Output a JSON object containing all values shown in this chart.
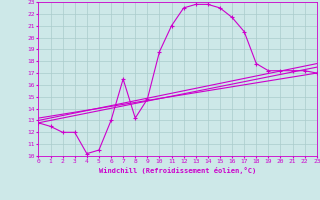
{
  "xlabel": "Windchill (Refroidissement éolien,°C)",
  "bg_color": "#cde8e8",
  "line_color": "#cc00cc",
  "grid_color": "#aacccc",
  "xlim": [
    0,
    23
  ],
  "ylim": [
    10,
    23
  ],
  "xticks": [
    0,
    1,
    2,
    3,
    4,
    5,
    6,
    7,
    8,
    9,
    10,
    11,
    12,
    13,
    14,
    15,
    16,
    17,
    18,
    19,
    20,
    21,
    22,
    23
  ],
  "yticks": [
    10,
    11,
    12,
    13,
    14,
    15,
    16,
    17,
    18,
    19,
    20,
    21,
    22,
    23
  ],
  "curve1_x": [
    0,
    1,
    2,
    3,
    4,
    5,
    6,
    7,
    8,
    9,
    10,
    11,
    12,
    13,
    14,
    15,
    16,
    17,
    18,
    19,
    20,
    21,
    22,
    23
  ],
  "curve1_y": [
    12.8,
    12.5,
    12.0,
    12.0,
    10.2,
    10.5,
    13.0,
    16.5,
    13.2,
    14.8,
    18.8,
    21.0,
    22.5,
    22.8,
    22.8,
    22.5,
    21.7,
    20.5,
    17.8,
    17.2,
    17.2,
    17.2,
    17.2,
    17.0
  ],
  "curve2_x": [
    0,
    23
  ],
  "curve2_y": [
    12.8,
    17.5
  ],
  "curve3_x": [
    0,
    23
  ],
  "curve3_y": [
    13.0,
    17.8
  ],
  "curve4_x": [
    0,
    23
  ],
  "curve4_y": [
    13.2,
    17.0
  ]
}
